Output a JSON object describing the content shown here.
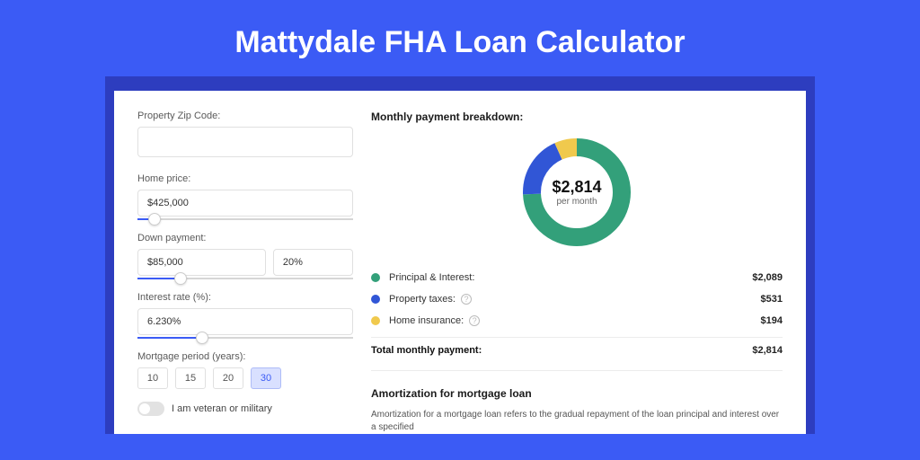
{
  "page_title": "Mattydale FHA Loan Calculator",
  "colors": {
    "page_bg": "#3b5bf5",
    "band_bg": "#2d3dbf",
    "card_bg": "#ffffff",
    "accent": "#3b5bf5"
  },
  "form": {
    "zip": {
      "label": "Property Zip Code:",
      "value": ""
    },
    "home_price": {
      "label": "Home price:",
      "value": "$425,000",
      "slider_pct": 8
    },
    "down_payment": {
      "label": "Down payment:",
      "amount": "$85,000",
      "percent": "20%",
      "slider_pct": 20
    },
    "interest_rate": {
      "label": "Interest rate (%):",
      "value": "6.230%",
      "slider_pct": 30
    },
    "mortgage_period": {
      "label": "Mortgage period (years):",
      "options": [
        "10",
        "15",
        "20",
        "30"
      ],
      "selected": "30"
    },
    "veteran": {
      "label": "I am veteran or military",
      "checked": false
    }
  },
  "breakdown": {
    "title": "Monthly payment breakdown:",
    "donut": {
      "type": "donut",
      "amount": "$2,814",
      "sub": "per month",
      "outer_radius": 60,
      "inner_radius": 40,
      "stroke_width": 20,
      "slices": [
        {
          "key": "pi",
          "value": 2089,
          "color": "#33a07a"
        },
        {
          "key": "tax",
          "value": 531,
          "color": "#3156d6"
        },
        {
          "key": "ins",
          "value": 194,
          "color": "#f0c94d"
        }
      ]
    },
    "rows": [
      {
        "dot": "#33a07a",
        "label": "Principal & Interest:",
        "value": "$2,089",
        "help": false
      },
      {
        "dot": "#3156d6",
        "label": "Property taxes:",
        "value": "$531",
        "help": true
      },
      {
        "dot": "#f0c94d",
        "label": "Home insurance:",
        "value": "$194",
        "help": true
      }
    ],
    "total": {
      "label": "Total monthly payment:",
      "value": "$2,814"
    }
  },
  "amortization": {
    "title": "Amortization for mortgage loan",
    "text": "Amortization for a mortgage loan refers to the gradual repayment of the loan principal and interest over a specified"
  }
}
